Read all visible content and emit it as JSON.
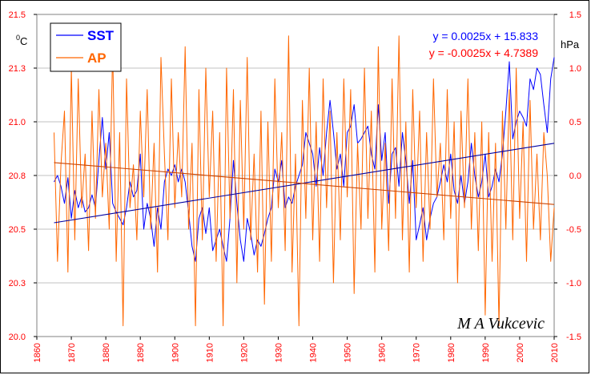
{
  "chart_data": {
    "type": "line",
    "left_axis": {
      "unit": "0C",
      "unit_sup": "0",
      "unit_main": "C",
      "ylim": [
        20.0,
        21.5
      ],
      "tick_labels": [
        "20.0",
        "20.3",
        "20.5",
        "20.8",
        "21.0",
        "21.3",
        "21.5"
      ],
      "tick_values": [
        20.0,
        20.25,
        20.5,
        20.75,
        21.0,
        21.25,
        21.5
      ]
    },
    "right_axis": {
      "unit": "hPa",
      "ylim": [
        -1.5,
        1.5
      ],
      "tick_labels": [
        "-1.5",
        "-1.0",
        "-0.5",
        "0.0",
        "0.5",
        "1.0",
        "1.5"
      ],
      "tick_values": [
        -1.5,
        -1.0,
        -0.5,
        0.0,
        0.5,
        1.0,
        1.5
      ]
    },
    "x_axis": {
      "xlim": [
        1860,
        2010
      ],
      "tick_labels": [
        "1860",
        "1870",
        "1880",
        "1890",
        "1900",
        "1910",
        "1920",
        "1930",
        "1940",
        "1950",
        "1960",
        "1970",
        "1980",
        "1990",
        "2000",
        "2010"
      ],
      "tick_values": [
        1860,
        1870,
        1880,
        1890,
        1900,
        1910,
        1920,
        1930,
        1940,
        1950,
        1960,
        1970,
        1980,
        1990,
        2000,
        2010
      ]
    },
    "grid": true,
    "legend_placement": "top-left",
    "series": [
      {
        "name": "SST",
        "color": "#0000ff",
        "axis": "left",
        "x": [
          1865,
          1866,
          1867,
          1868,
          1869,
          1870,
          1871,
          1872,
          1873,
          1874,
          1875,
          1876,
          1877,
          1878,
          1879,
          1880,
          1881,
          1882,
          1883,
          1884,
          1885,
          1886,
          1887,
          1888,
          1889,
          1890,
          1891,
          1892,
          1893,
          1894,
          1895,
          1896,
          1897,
          1898,
          1899,
          1900,
          1901,
          1902,
          1903,
          1904,
          1905,
          1906,
          1907,
          1908,
          1909,
          1910,
          1911,
          1912,
          1913,
          1914,
          1915,
          1916,
          1917,
          1918,
          1919,
          1920,
          1921,
          1922,
          1923,
          1924,
          1925,
          1926,
          1927,
          1928,
          1929,
          1930,
          1931,
          1932,
          1933,
          1934,
          1935,
          1936,
          1937,
          1938,
          1939,
          1940,
          1941,
          1942,
          1943,
          1944,
          1945,
          1946,
          1947,
          1948,
          1949,
          1950,
          1951,
          1952,
          1953,
          1954,
          1955,
          1956,
          1957,
          1958,
          1959,
          1960,
          1961,
          1962,
          1963,
          1964,
          1965,
          1966,
          1967,
          1968,
          1969,
          1970,
          1971,
          1972,
          1973,
          1974,
          1975,
          1976,
          1977,
          1978,
          1979,
          1980,
          1981,
          1982,
          1983,
          1984,
          1985,
          1986,
          1987,
          1988,
          1989,
          1990,
          1991,
          1992,
          1993,
          1994,
          1995,
          1996,
          1997,
          1998,
          1999,
          2000,
          2001,
          2002,
          2003,
          2004,
          2005,
          2006,
          2007,
          2008,
          2009,
          2010
        ],
        "values": [
          20.72,
          20.75,
          20.7,
          20.62,
          20.74,
          20.55,
          20.68,
          20.6,
          20.65,
          20.58,
          20.6,
          20.66,
          20.6,
          20.82,
          21.02,
          20.78,
          20.95,
          20.62,
          20.58,
          20.55,
          20.52,
          20.6,
          20.72,
          20.65,
          20.68,
          20.85,
          20.5,
          20.62,
          20.55,
          20.42,
          20.6,
          20.5,
          20.72,
          20.78,
          20.75,
          20.8,
          20.72,
          20.78,
          20.72,
          20.58,
          20.42,
          20.35,
          20.55,
          20.6,
          20.48,
          20.6,
          20.4,
          20.45,
          20.5,
          20.42,
          20.35,
          20.55,
          20.82,
          20.62,
          20.45,
          20.35,
          20.55,
          20.48,
          20.38,
          20.45,
          20.42,
          20.48,
          20.55,
          20.6,
          20.78,
          20.72,
          20.82,
          20.6,
          20.65,
          20.62,
          20.7,
          20.75,
          20.8,
          20.95,
          20.9,
          20.85,
          20.7,
          20.88,
          20.75,
          20.95,
          21.1,
          20.95,
          20.78,
          20.85,
          20.7,
          20.95,
          20.98,
          21.08,
          20.9,
          20.92,
          20.95,
          20.98,
          20.85,
          20.78,
          21.08,
          20.82,
          20.95,
          20.62,
          20.85,
          20.88,
          20.7,
          20.95,
          20.82,
          20.62,
          20.82,
          20.45,
          20.52,
          20.6,
          20.45,
          20.55,
          20.62,
          20.65,
          20.72,
          20.8,
          20.72,
          20.85,
          20.68,
          20.62,
          20.75,
          20.62,
          20.72,
          20.9,
          20.75,
          20.65,
          20.72,
          20.85,
          20.65,
          20.7,
          20.78,
          20.72,
          20.85,
          21.05,
          21.28,
          20.92,
          21.0,
          21.05,
          21.02,
          20.98,
          21.2,
          21.15,
          21.25,
          21.22,
          21.08,
          20.95,
          21.2,
          21.3
        ]
      },
      {
        "name": "AP",
        "color": "#ff6600",
        "axis": "right",
        "x": [
          1865,
          1866,
          1867,
          1868,
          1869,
          1870,
          1871,
          1872,
          1873,
          1874,
          1875,
          1876,
          1877,
          1878,
          1879,
          1880,
          1881,
          1882,
          1883,
          1884,
          1885,
          1886,
          1887,
          1888,
          1889,
          1890,
          1891,
          1892,
          1893,
          1894,
          1895,
          1896,
          1897,
          1898,
          1899,
          1900,
          1901,
          1902,
          1903,
          1904,
          1905,
          1906,
          1907,
          1908,
          1909,
          1910,
          1911,
          1912,
          1913,
          1914,
          1915,
          1916,
          1917,
          1918,
          1919,
          1920,
          1921,
          1922,
          1923,
          1924,
          1925,
          1926,
          1927,
          1928,
          1929,
          1930,
          1931,
          1932,
          1933,
          1934,
          1935,
          1936,
          1937,
          1938,
          1939,
          1940,
          1941,
          1942,
          1943,
          1944,
          1945,
          1946,
          1947,
          1948,
          1949,
          1950,
          1951,
          1952,
          1953,
          1954,
          1955,
          1956,
          1957,
          1958,
          1959,
          1960,
          1961,
          1962,
          1963,
          1964,
          1965,
          1966,
          1967,
          1968,
          1969,
          1970,
          1971,
          1972,
          1973,
          1974,
          1975,
          1976,
          1977,
          1978,
          1979,
          1980,
          1981,
          1982,
          1983,
          1984,
          1985,
          1986,
          1987,
          1988,
          1989,
          1990,
          1991,
          1992,
          1993,
          1994,
          1995,
          1996,
          1997,
          1998,
          1999,
          2000,
          2001,
          2002,
          2003,
          2004,
          2005,
          2006,
          2007,
          2008,
          2009,
          2010
        ],
        "values": [
          0.4,
          -0.8,
          0.1,
          0.6,
          -0.9,
          1.0,
          -0.6,
          0.9,
          -0.3,
          0.2,
          -0.7,
          0.6,
          -0.4,
          0.8,
          -0.2,
          0.3,
          -0.5,
          1.2,
          -0.8,
          0.4,
          -1.4,
          0.9,
          -0.3,
          0.1,
          -0.6,
          0.6,
          -0.2,
          0.8,
          -0.5,
          0.3,
          -0.9,
          1.1,
          0.2,
          -0.6,
          0.9,
          -0.3,
          0.4,
          -0.2,
          1.2,
          -0.5,
          0.3,
          -1.4,
          0.8,
          -0.6,
          1.0,
          -0.2,
          0.6,
          -0.8,
          0.4,
          -1.4,
          1.0,
          -0.4,
          0.8,
          -1.0,
          0.7,
          -0.5,
          1.1,
          -0.6,
          0.2,
          -0.9,
          0.6,
          -1.2,
          0.5,
          -0.8,
          0.9,
          -0.3,
          0.4,
          -0.7,
          1.3,
          -0.9,
          0.2,
          -1.4,
          0.7,
          -0.4,
          1.0,
          -0.6,
          0.5,
          -0.8,
          0.9,
          -0.3,
          0.6,
          -1.0,
          0.4,
          -0.6,
          0.9,
          -0.2,
          0.8,
          -1.1,
          0.3,
          -0.5,
          1.0,
          -0.4,
          0.6,
          -0.9,
          1.2,
          -0.5,
          0.3,
          -0.7,
          0.9,
          -0.4,
          1.3,
          -0.6,
          0.5,
          -0.9,
          0.8,
          -0.3,
          0.6,
          -0.8,
          0.4,
          -0.5,
          0.9,
          -0.2,
          0.3,
          -0.6,
          0.8,
          -0.4,
          0.5,
          -1.0,
          0.6,
          -0.3,
          0.9,
          -0.5,
          0.4,
          -0.7,
          0.5,
          -1.3,
          0.4,
          -0.8,
          0.3,
          -1.4,
          0.6,
          -0.5,
          0.8,
          -0.6,
          1.0,
          -0.4,
          0.5,
          -0.8,
          0.7,
          -0.5,
          0.2,
          -0.6,
          0.4,
          0.0,
          -0.8,
          -0.3
        ]
      },
      {
        "name": "",
        "color": "#0000a0",
        "axis": "left",
        "kind": "trend",
        "equation": "y = 0.0025x + 15.833",
        "eq_color": "#0000ff",
        "x": [
          1865,
          2010
        ],
        "values": [
          20.53,
          20.9
        ]
      },
      {
        "name": "",
        "color": "#cc4400",
        "axis": "right",
        "kind": "trend",
        "equation": "y = -0.0025x + 4.7389",
        "eq_color": "#ff0000",
        "x": [
          1865,
          2010
        ],
        "values": [
          0.12,
          -0.27
        ]
      }
    ],
    "legend": [
      {
        "label": "SST",
        "color": "#0000ff",
        "text_color": "#0000ff"
      },
      {
        "label": "AP",
        "color": "#ff6600",
        "text_color": "#ff6600"
      }
    ],
    "annotations": {
      "credit": "M A Vukcevic"
    }
  }
}
